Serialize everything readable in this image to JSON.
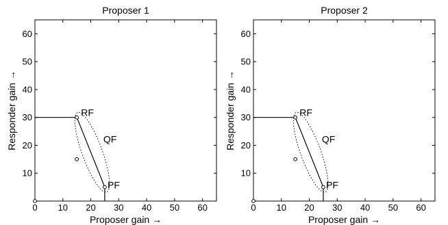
{
  "chart_data": [
    {
      "type": "line",
      "title": "Proposer 1",
      "xlabel": "Proposer gain →",
      "ylabel": "Responder gain →",
      "xlim": [
        0,
        65
      ],
      "ylim": [
        0,
        65
      ],
      "xticks": [
        0,
        10,
        20,
        30,
        40,
        50,
        60
      ],
      "yticks": [
        10,
        20,
        30,
        40,
        50,
        60
      ],
      "grid": false,
      "series": [
        {
          "style": "solid",
          "x": [
            0,
            15
          ],
          "y": [
            30,
            30
          ]
        },
        {
          "style": "solid",
          "x": [
            15,
            25
          ],
          "y": [
            30,
            5
          ]
        },
        {
          "style": "solid",
          "x": [
            25,
            25
          ],
          "y": [
            5,
            0
          ]
        }
      ],
      "points": [
        {
          "x": 0,
          "y": 0
        },
        {
          "x": 15,
          "y": 30
        },
        {
          "x": 25,
          "y": 5
        },
        {
          "x": 15,
          "y": 15
        }
      ],
      "ellipse": {
        "cx": 20.5,
        "cy": 17.5,
        "rx": 3.6,
        "ry": 15.2,
        "angle_deg": -20
      },
      "annotations": [
        {
          "text": "RF",
          "x": 16.5,
          "y": 30.5
        },
        {
          "text": "QF",
          "x": 24.5,
          "y": 21
        },
        {
          "text": "PF",
          "x": 26,
          "y": 4.5
        }
      ]
    },
    {
      "type": "line",
      "title": "Proposer 2",
      "xlabel": "Proposer gain →",
      "ylabel": "Responder gain →",
      "xlim": [
        0,
        65
      ],
      "ylim": [
        0,
        65
      ],
      "xticks": [
        0,
        10,
        20,
        30,
        40,
        50,
        60
      ],
      "yticks": [
        10,
        20,
        30,
        40,
        50,
        60
      ],
      "grid": false,
      "series": [
        {
          "style": "solid",
          "x": [
            0,
            15
          ],
          "y": [
            30,
            30
          ]
        },
        {
          "style": "solid",
          "x": [
            15,
            25
          ],
          "y": [
            30,
            5
          ]
        },
        {
          "style": "solid",
          "x": [
            25,
            25
          ],
          "y": [
            5,
            0
          ]
        }
      ],
      "points": [
        {
          "x": 0,
          "y": 0
        },
        {
          "x": 15,
          "y": 30
        },
        {
          "x": 25,
          "y": 5
        },
        {
          "x": 15,
          "y": 15
        }
      ],
      "ellipse": {
        "cx": 20.5,
        "cy": 17.5,
        "rx": 3.6,
        "ry": 15.2,
        "angle_deg": -20
      },
      "annotations": [
        {
          "text": "RF",
          "x": 16.5,
          "y": 30.5
        },
        {
          "text": "QF",
          "x": 24.5,
          "y": 21
        },
        {
          "text": "PF",
          "x": 26,
          "y": 4.5
        }
      ]
    }
  ]
}
